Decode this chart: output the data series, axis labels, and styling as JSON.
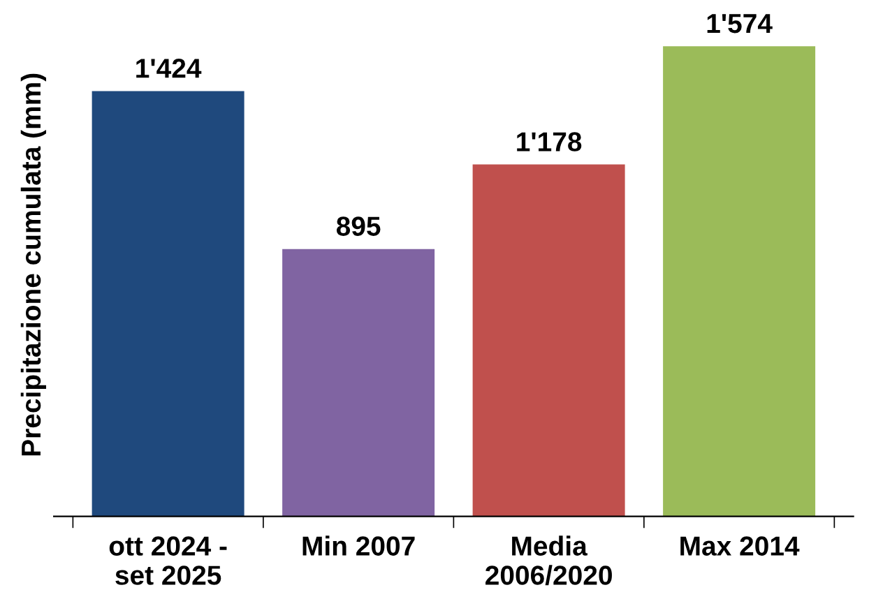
{
  "chart_data": {
    "type": "bar",
    "ylabel": "Precipitazione cumulata (mm)",
    "categories": [
      "ott 2024 -\nset 2025",
      "Min 2007",
      "Media\n2006/2020",
      "Max 2014"
    ],
    "values": [
      1424,
      895,
      1178,
      1574
    ],
    "colors": [
      "#1f497d",
      "#8064a2",
      "#c0504d",
      "#9bbb59"
    ],
    "value_labels": [
      "1'424",
      "895",
      "1'178",
      "1'574"
    ],
    "grid": false,
    "legend": false
  }
}
